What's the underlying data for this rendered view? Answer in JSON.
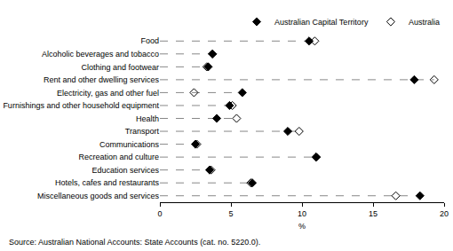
{
  "chart_data": {
    "type": "scatter",
    "orientation": "horizontal",
    "categories": [
      "Food",
      "Alcoholic beverages and tobacco",
      "Clothing and footwear",
      "Rent and other dwelling services",
      "Electricity, gas and other fuel",
      "Furnishings and other household equipment",
      "Health",
      "Transport",
      "Communications",
      "Recreation and culture",
      "Education services",
      "Hotels, cafes and restaurants",
      "Miscellaneous goods and services"
    ],
    "series": [
      {
        "name": "Australian Capital Territory",
        "color": "#000000",
        "marker": "diamond",
        "values": [
          10.5,
          3.7,
          3.4,
          17.9,
          5.8,
          4.9,
          4.0,
          9.0,
          2.5,
          11.0,
          3.5,
          6.5,
          18.3
        ]
      },
      {
        "name": "Australia",
        "color": "#000000",
        "marker": "diamond-open",
        "values": [
          10.9,
          3.7,
          3.3,
          19.3,
          2.4,
          5.1,
          5.4,
          9.8,
          2.6,
          11.0,
          3.6,
          6.4,
          16.6
        ]
      }
    ],
    "x_label": "%",
    "xlim": [
      0,
      20
    ],
    "xticks": [
      0,
      5,
      10,
      15,
      20
    ],
    "grid": false,
    "legend": "top right",
    "annotations": [
      "Source: Australian National Accounts: State Accounts (cat. no. 5220.0)."
    ]
  }
}
